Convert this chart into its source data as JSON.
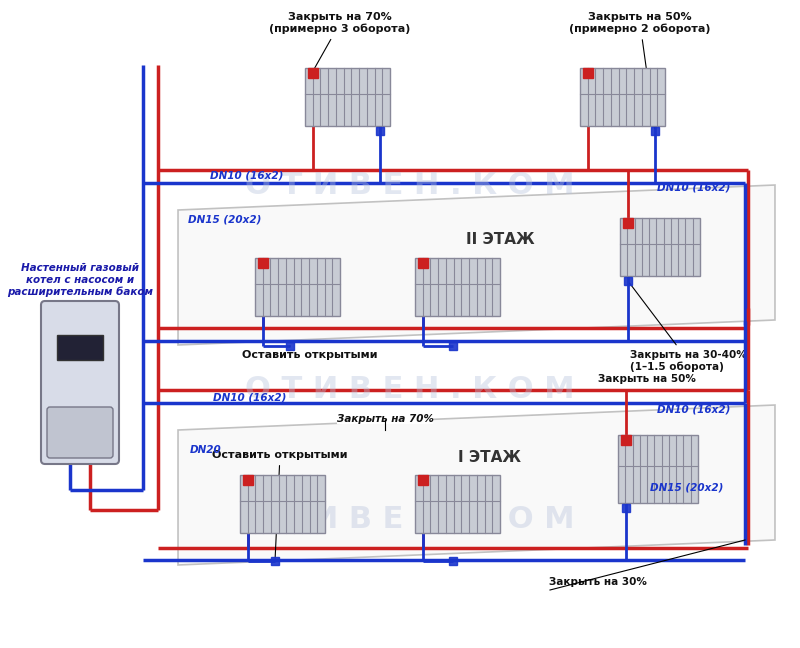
{
  "bg_color": "#ffffff",
  "red_color": "#cc2020",
  "blue_color": "#1a35cc",
  "dark_blue_text": "#1a1aaa",
  "black_text": "#111111",
  "watermark_color": "#b8c4dc",
  "radiator_fill": "#c8ccd4",
  "radiator_edge": "#888899",
  "boiler_fill": "#d8dce8",
  "boiler_edge": "#777788",
  "frame_edge": "#888888",
  "frame_fill": "#f5f5f5",
  "annotations": {
    "top_left_70": "Закрыть на 70%\n(примерно 3 оборота)",
    "top_right_50": "Закрыть на 50%\n(примерно 2 оборота)",
    "floor2_label": "II ЭТАЖ",
    "floor1_label": "I ЭТАЖ",
    "dn15_20x2_floor2": "DN15 (20x2)",
    "dn10_16x2_top_left": "DN10 (16x2)",
    "dn10_16x2_top_right": "DN10 (16x2)",
    "dn10_16x2_mid_left": "DN10 (16x2)",
    "dn10_16x2_mid_right": "DN10 (16x2)",
    "dn15_20x2_floor1": "DN15 (20x2)",
    "dn20": "DN20",
    "leave_open_floor2": "Оставить открытыми",
    "leave_open_floor1": "Оставить открытыми",
    "close_30_40": "Закрыть на 30-40%\n(1–1.5 оборота)",
    "close_50_mid": "Закрыть на 50%",
    "close_70_floor1": "Закрыть на 70%",
    "close_30_floor1": "Закрыть на 30%",
    "boiler_label": "Настенный газовый\nкотел с насосом и\nрасширительным баком"
  }
}
